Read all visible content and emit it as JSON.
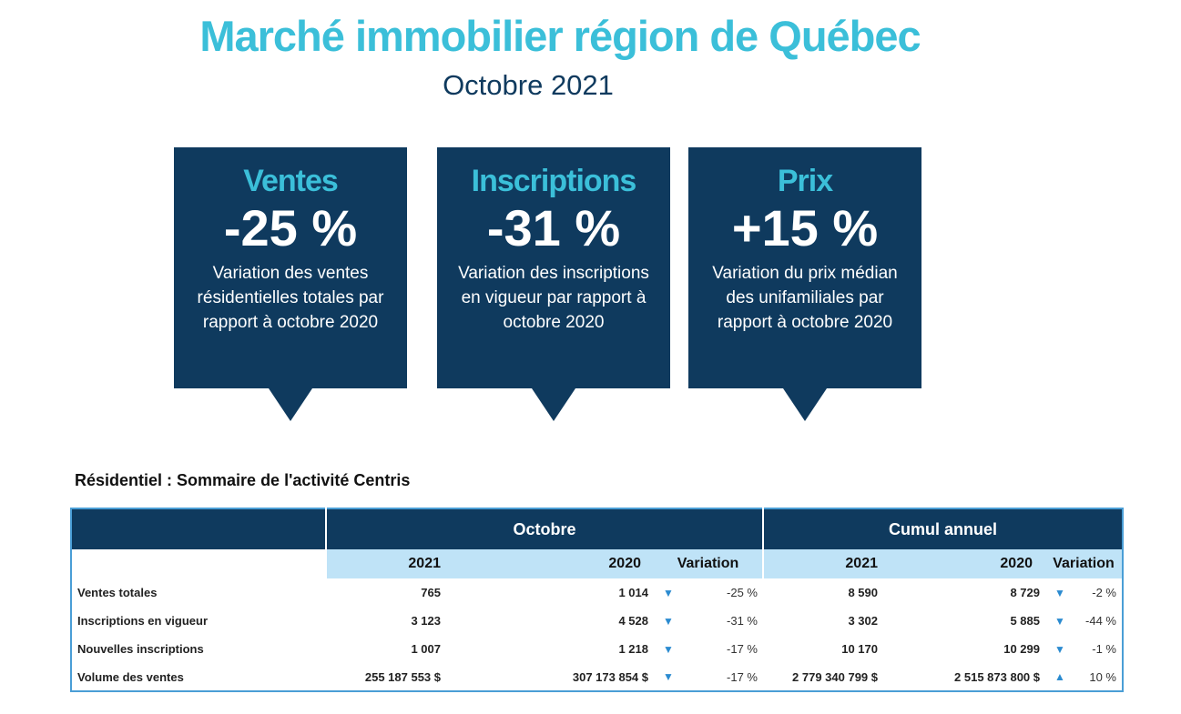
{
  "title": "Marché immobilier région de Québec",
  "subtitle": "Octobre 2021",
  "cards": [
    {
      "label": "Ventes",
      "value": "-25 %",
      "desc": "Variation des ventes résidentielles totales par rapport à octobre 2020"
    },
    {
      "label": "Inscriptions",
      "value": "-31 %",
      "desc": "Variation des inscriptions en vigueur par rapport à octobre 2020"
    },
    {
      "label": "Prix",
      "value": "+15 %",
      "desc": "Variation du prix médian des unifamiliales par rapport à octobre 2020"
    }
  ],
  "table": {
    "section_title": "Résidentiel : Sommaire de l'activité Centris",
    "groups": [
      "Octobre",
      "Cumul annuel"
    ],
    "columns": [
      "2021",
      "2020",
      "Variation",
      "2021",
      "2020",
      "Variation"
    ],
    "rows": [
      {
        "label": "Ventes totales",
        "m21": "765",
        "m20": "1 014",
        "md": "down",
        "mv": "-25 %",
        "y21": "8 590",
        "y20": "8 729",
        "yd": "down",
        "yv": "-2 %"
      },
      {
        "label": "Inscriptions en vigueur",
        "m21": "3 123",
        "m20": "4 528",
        "md": "down",
        "mv": "-31 %",
        "y21": "3 302",
        "y20": "5 885",
        "yd": "down",
        "yv": "-44 %"
      },
      {
        "label": "Nouvelles inscriptions",
        "m21": "1 007",
        "m20": "1 218",
        "md": "down",
        "mv": "-17 %",
        "y21": "10 170",
        "y20": "10 299",
        "yd": "down",
        "yv": "-1 %"
      },
      {
        "label": "Volume des ventes",
        "m21": "255 187 553  $",
        "m20": "307 173 854  $",
        "md": "down",
        "mv": "-17 %",
        "y21": "2 779 340 799  $",
        "y20": "2 515 873 800  $",
        "yd": "up",
        "yv": "10 %"
      }
    ]
  },
  "colors": {
    "accent": "#3bbfd9",
    "navy": "#0f3a5e",
    "light": "#bfe3f7",
    "arrow": "#2b8bd0"
  }
}
